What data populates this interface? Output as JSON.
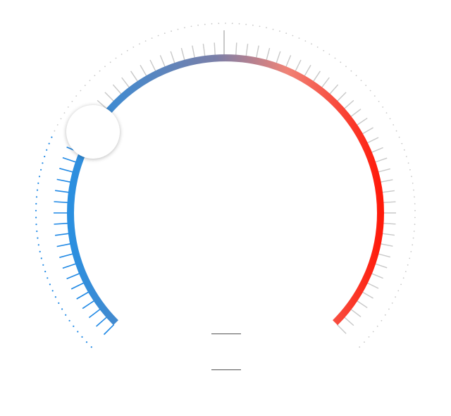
{
  "dial": {
    "value_fraction": 0.26,
    "start_angle_deg": 225,
    "end_angle_deg": -45,
    "tick_count": 73,
    "gradient": {
      "start": "#2a8fe0",
      "mid": "#7a7fa8",
      "warm": "#f08276",
      "end": "#ff1a0a"
    },
    "active_tick_color": "#1e88e5",
    "inactive_tick_color": "#c8c8c8",
    "dotted_ring_active_color": "#1e88e5",
    "dotted_ring_inactive_color": "#c8c8c8"
  },
  "readout": {
    "primary_text": "",
    "secondary_text": ""
  }
}
